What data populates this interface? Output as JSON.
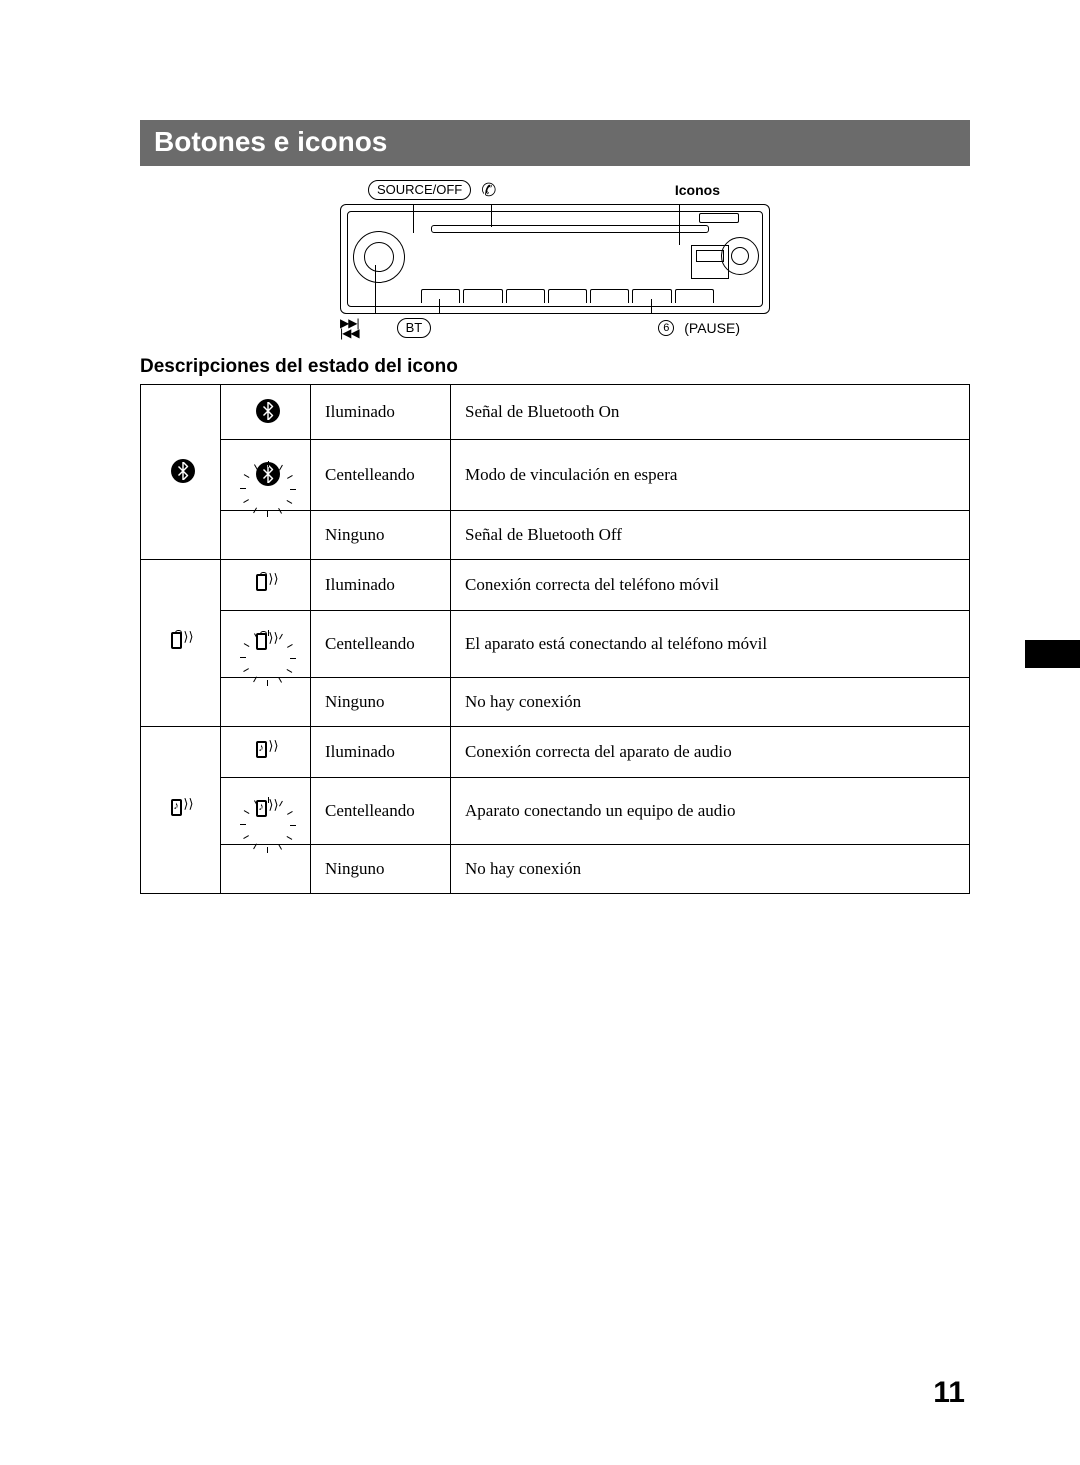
{
  "header": {
    "title": "Botones e iconos"
  },
  "diagram": {
    "top_labels": {
      "source_off": "SOURCE/OFF",
      "iconos": "Iconos"
    },
    "bottom_labels": {
      "bt": "BT",
      "pause_num": "6",
      "pause": "(PAUSE)"
    }
  },
  "subheading": "Descripciones del estado del icono",
  "table": {
    "groups": [
      {
        "icon": "bluetooth",
        "rows": [
          {
            "state_icon": "bluetooth-solid",
            "state": "Iluminado",
            "desc": "Señal de Bluetooth On"
          },
          {
            "state_icon": "bluetooth-flash",
            "state": "Centelleando",
            "desc": "Modo de vinculación en espera"
          },
          {
            "state_icon": "none",
            "state": "Ninguno",
            "desc": "Señal de Bluetooth Off"
          }
        ]
      },
      {
        "icon": "phone",
        "rows": [
          {
            "state_icon": "phone-solid",
            "state": "Iluminado",
            "desc": "Conexión correcta del teléfono móvil"
          },
          {
            "state_icon": "phone-flash",
            "state": "Centelleando",
            "desc": "El aparato está conectando al teléfono móvil"
          },
          {
            "state_icon": "none",
            "state": "Ninguno",
            "desc": "No hay conexión"
          }
        ]
      },
      {
        "icon": "audio",
        "rows": [
          {
            "state_icon": "audio-solid",
            "state": "Iluminado",
            "desc": "Conexión correcta del aparato de audio"
          },
          {
            "state_icon": "audio-flash",
            "state": "Centelleando",
            "desc": "Aparato conectando un equipo de audio"
          },
          {
            "state_icon": "none",
            "state": "Ninguno",
            "desc": "No hay conexión"
          }
        ]
      }
    ]
  },
  "page_number": "11",
  "colors": {
    "titlebar_bg": "#6b6b6b",
    "titlebar_fg": "#ffffff",
    "page_bg": "#ffffff",
    "text": "#000000",
    "border": "#000000"
  },
  "typography": {
    "title_family": "Arial",
    "title_size_pt": 21,
    "body_family": "Times New Roman",
    "body_size_pt": 13,
    "subhead_size_pt": 14
  }
}
